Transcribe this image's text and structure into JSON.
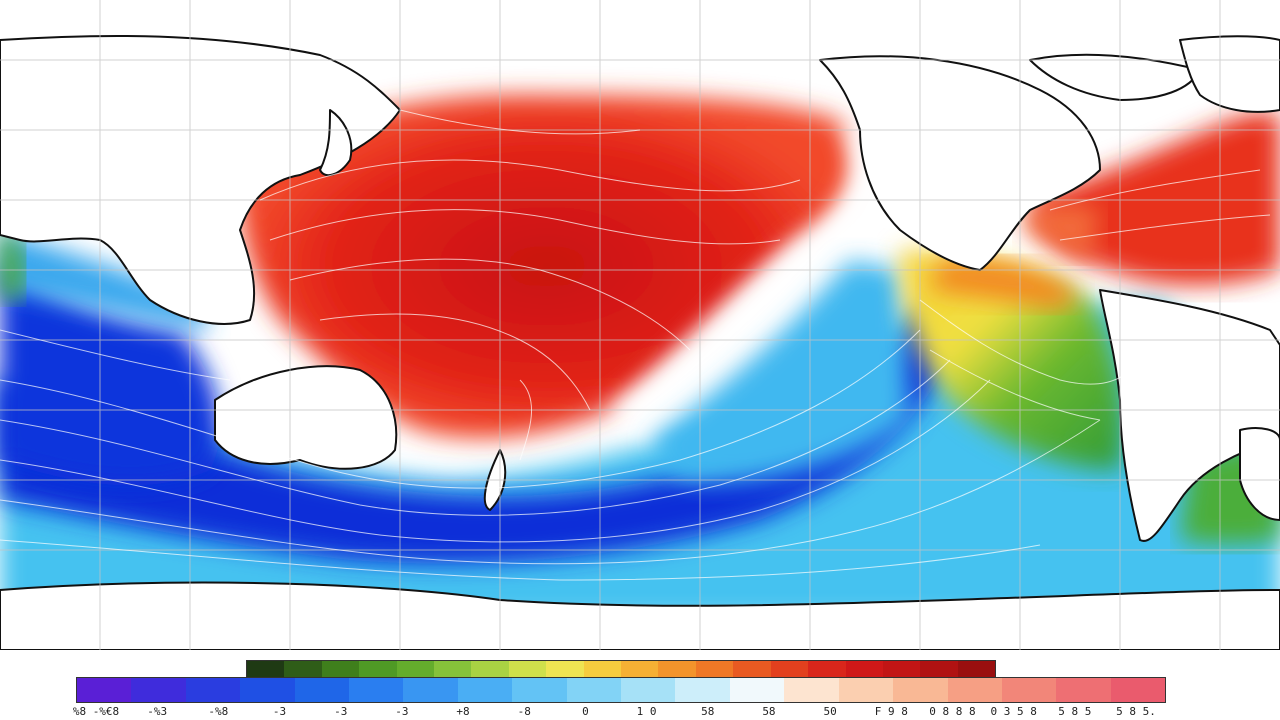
{
  "map": {
    "type": "global-anomaly-map",
    "projection": "equirectangular-pacific-centered",
    "gridlines": true,
    "streamlines": true,
    "colors": {
      "strong_positive": "#d90e0e",
      "positive": "#f03a24",
      "neutral": "#ffffff",
      "weak_negative": "#2fb4ec",
      "strong_negative": "#0a2fd6",
      "yellow_band": "#f3e33a",
      "green_band": "#3ca52f",
      "orange_band": "#f5a023",
      "land": "#ffffff",
      "coastline": "#111111",
      "grid": "#bfbfbf"
    },
    "regions": [
      {
        "name": "north-pacific-warm-anomaly",
        "sign": "positive"
      },
      {
        "name": "north-atlantic-warm-anomaly",
        "sign": "positive"
      },
      {
        "name": "southern-ocean-cold-anomaly",
        "sign": "negative"
      },
      {
        "name": "indian-ocean-cold-anomaly",
        "sign": "negative"
      },
      {
        "name": "eastern-pacific-green-band",
        "sign": "positive"
      }
    ]
  },
  "legend": {
    "top_bar_colors": [
      "#1f3a14",
      "#2f5d18",
      "#3f7f1c",
      "#4f9a25",
      "#64ad2c",
      "#86c23a",
      "#a9d243",
      "#cfe04b",
      "#efe452",
      "#f6cc3e",
      "#f6b034",
      "#f3942b",
      "#ef7826",
      "#e85a22",
      "#e2401e",
      "#d9261b",
      "#cf1818",
      "#c21515",
      "#b01212",
      "#9a0f0f"
    ],
    "bottom_bar_colors": [
      "#5a1fd6",
      "#3f2cdc",
      "#2a3de0",
      "#1f50e4",
      "#1f66e8",
      "#2a7ef0",
      "#3996f2",
      "#4aaef4",
      "#63c3f5",
      "#82d3f6",
      "#a6e1f7",
      "#cdeefa",
      "#f1f9fc",
      "#fde4d0",
      "#fbcfb0",
      "#f9b895",
      "#f69f84",
      "#f28679",
      "#ee6f73",
      "#ea5b6d"
    ],
    "tick_labels": [
      "%8 -%€8",
      "-%3",
      "-%8",
      "-3",
      "-3",
      "-3",
      "+8",
      "-8",
      "0",
      "1 0",
      "58",
      "58",
      "50",
      "F 9 8",
      "0 8 8 8",
      "0 3 5 8",
      "5 8 5",
      "5 8 5."
    ]
  }
}
